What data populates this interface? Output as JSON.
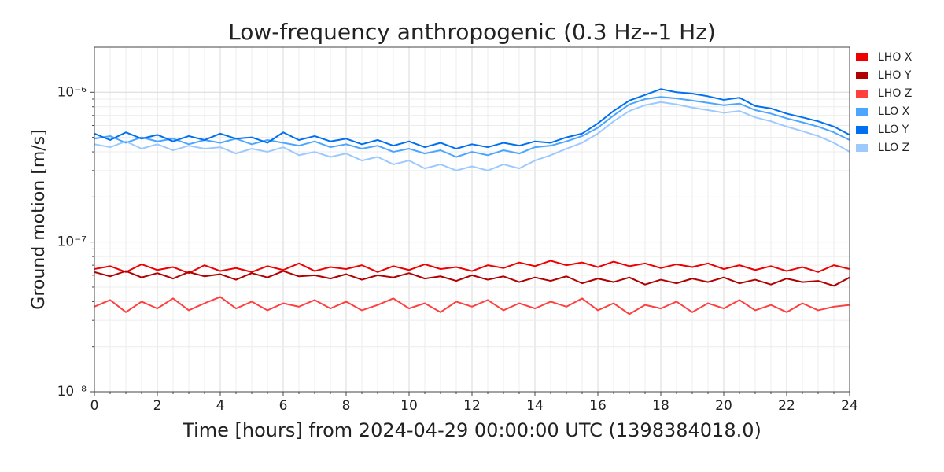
{
  "chart_data": {
    "type": "line",
    "title": "Low-frequency anthropogenic (0.3 Hz--1 Hz)",
    "xlabel": "Time [hours] from 2024-04-29 00:00:00 UTC (1398384018.0)",
    "ylabel": "Ground motion [m/s]",
    "yscale": "log",
    "grid": true,
    "legend": "outside-right",
    "xlim": [
      0,
      24
    ],
    "xticks": [
      0,
      2,
      4,
      6,
      8,
      10,
      12,
      14,
      16,
      18,
      20,
      22,
      24
    ],
    "xminorticks": [
      0.5,
      1,
      1.5,
      2.5,
      3,
      3.5,
      4.5,
      5,
      5.5,
      6.5,
      7,
      7.5,
      8.5,
      9,
      9.5,
      10.5,
      11,
      11.5,
      12.5,
      13,
      13.5,
      14.5,
      15,
      15.5,
      16.5,
      17,
      17.5,
      18.5,
      19,
      19.5,
      20.5,
      21,
      21.5,
      22.5,
      23,
      23.5
    ],
    "ylim": [
      1e-08,
      2e-06
    ],
    "yticks": [
      {
        "value": 1e-08,
        "label": "10⁻⁸"
      },
      {
        "value": 1e-07,
        "label": "10⁻⁷"
      },
      {
        "value": 1e-06,
        "label": "10⁻⁶"
      }
    ],
    "yminorticks": [
      2e-08,
      3e-08,
      4e-08,
      5e-08,
      6e-08,
      7e-08,
      8e-08,
      9e-08,
      2e-07,
      3e-07,
      4e-07,
      5e-07,
      6e-07,
      7e-07,
      8e-07,
      9e-07
    ],
    "x": [
      0,
      0.5,
      1,
      1.5,
      2,
      2.5,
      3,
      3.5,
      4,
      4.5,
      5,
      5.5,
      6,
      6.5,
      7,
      7.5,
      8,
      8.5,
      9,
      9.5,
      10,
      10.5,
      11,
      11.5,
      12,
      12.5,
      13,
      13.5,
      14,
      14.5,
      15,
      15.5,
      16,
      16.5,
      17,
      17.5,
      18,
      18.5,
      19,
      19.5,
      20,
      20.5,
      21,
      21.5,
      22,
      22.5,
      23,
      23.5,
      24
    ],
    "series": [
      {
        "name": "LHO X",
        "color": "#ee0000",
        "values": [
          6.6e-08,
          6.9e-08,
          6.3e-08,
          7.1e-08,
          6.5e-08,
          6.8e-08,
          6.2e-08,
          7e-08,
          6.4e-08,
          6.7e-08,
          6.3e-08,
          6.9e-08,
          6.5e-08,
          7.2e-08,
          6.4e-08,
          6.8e-08,
          6.6e-08,
          7e-08,
          6.3e-08,
          6.9e-08,
          6.5e-08,
          7.1e-08,
          6.6e-08,
          6.8e-08,
          6.4e-08,
          7e-08,
          6.7e-08,
          7.3e-08,
          6.9e-08,
          7.5e-08,
          7e-08,
          7.3e-08,
          6.8e-08,
          7.4e-08,
          6.9e-08,
          7.2e-08,
          6.7e-08,
          7.1e-08,
          6.8e-08,
          7.2e-08,
          6.6e-08,
          7e-08,
          6.5e-08,
          6.9e-08,
          6.4e-08,
          6.8e-08,
          6.3e-08,
          7e-08,
          6.6e-08
        ]
      },
      {
        "name": "LHO Y",
        "color": "#b00000",
        "values": [
          6.3e-08,
          5.9e-08,
          6.4e-08,
          5.8e-08,
          6.2e-08,
          5.7e-08,
          6.3e-08,
          5.9e-08,
          6.1e-08,
          5.6e-08,
          6.2e-08,
          5.8e-08,
          6.4e-08,
          5.9e-08,
          6e-08,
          5.7e-08,
          6.1e-08,
          5.6e-08,
          6e-08,
          5.8e-08,
          6.2e-08,
          5.7e-08,
          5.9e-08,
          5.5e-08,
          6e-08,
          5.6e-08,
          5.9e-08,
          5.4e-08,
          5.8e-08,
          5.5e-08,
          5.9e-08,
          5.3e-08,
          5.7e-08,
          5.4e-08,
          5.8e-08,
          5.2e-08,
          5.6e-08,
          5.3e-08,
          5.7e-08,
          5.4e-08,
          5.8e-08,
          5.3e-08,
          5.6e-08,
          5.2e-08,
          5.7e-08,
          5.4e-08,
          5.5e-08,
          5.1e-08,
          5.8e-08
        ]
      },
      {
        "name": "LHO Z",
        "color": "#ff4040",
        "values": [
          3.7e-08,
          4.1e-08,
          3.4e-08,
          4e-08,
          3.6e-08,
          4.2e-08,
          3.5e-08,
          3.9e-08,
          4.3e-08,
          3.6e-08,
          4e-08,
          3.5e-08,
          3.9e-08,
          3.7e-08,
          4.1e-08,
          3.6e-08,
          4e-08,
          3.5e-08,
          3.8e-08,
          4.2e-08,
          3.6e-08,
          3.9e-08,
          3.4e-08,
          4e-08,
          3.7e-08,
          4.1e-08,
          3.5e-08,
          3.9e-08,
          3.6e-08,
          4e-08,
          3.7e-08,
          4.2e-08,
          3.5e-08,
          3.9e-08,
          3.3e-08,
          3.8e-08,
          3.6e-08,
          4e-08,
          3.4e-08,
          3.9e-08,
          3.6e-08,
          4.1e-08,
          3.5e-08,
          3.8e-08,
          3.4e-08,
          3.9e-08,
          3.5e-08,
          3.7e-08,
          3.8e-08
        ]
      },
      {
        "name": "LLO X",
        "color": "#4ba6ff",
        "values": [
          4.9e-07,
          5.1e-07,
          4.6e-07,
          5e-07,
          4.7e-07,
          4.9e-07,
          4.5e-07,
          4.8e-07,
          4.6e-07,
          4.9e-07,
          4.5e-07,
          4.8e-07,
          4.6e-07,
          4.4e-07,
          4.7e-07,
          4.3e-07,
          4.5e-07,
          4.2e-07,
          4.4e-07,
          4e-07,
          4.2e-07,
          3.9e-07,
          4.1e-07,
          3.7e-07,
          4e-07,
          3.8e-07,
          4.1e-07,
          3.9e-07,
          4.3e-07,
          4.4e-07,
          4.7e-07,
          5.1e-07,
          5.8e-07,
          7e-07,
          8.3e-07,
          9e-07,
          9.3e-07,
          9.1e-07,
          8.8e-07,
          8.5e-07,
          8.2e-07,
          8.4e-07,
          7.6e-07,
          7.2e-07,
          6.7e-07,
          6.3e-07,
          5.9e-07,
          5.4e-07,
          4.8e-07
        ]
      },
      {
        "name": "LLO Y",
        "color": "#0070f0",
        "values": [
          5.3e-07,
          4.8e-07,
          5.4e-07,
          4.9e-07,
          5.2e-07,
          4.7e-07,
          5.1e-07,
          4.8e-07,
          5.3e-07,
          4.9e-07,
          5e-07,
          4.6e-07,
          5.4e-07,
          4.8e-07,
          5.1e-07,
          4.7e-07,
          4.9e-07,
          4.5e-07,
          4.8e-07,
          4.4e-07,
          4.7e-07,
          4.3e-07,
          4.6e-07,
          4.2e-07,
          4.5e-07,
          4.3e-07,
          4.6e-07,
          4.4e-07,
          4.7e-07,
          4.6e-07,
          5e-07,
          5.3e-07,
          6.2e-07,
          7.5e-07,
          8.8e-07,
          9.6e-07,
          1.05e-06,
          1e-06,
          9.8e-07,
          9.4e-07,
          8.9e-07,
          9.2e-07,
          8.1e-07,
          7.8e-07,
          7.2e-07,
          6.8e-07,
          6.4e-07,
          5.9e-07,
          5.2e-07
        ]
      },
      {
        "name": "LLO Z",
        "color": "#9ccaff",
        "values": [
          4.5e-07,
          4.3e-07,
          4.7e-07,
          4.2e-07,
          4.5e-07,
          4.1e-07,
          4.4e-07,
          4.2e-07,
          4.3e-07,
          3.9e-07,
          4.2e-07,
          4e-07,
          4.3e-07,
          3.8e-07,
          4e-07,
          3.7e-07,
          3.9e-07,
          3.5e-07,
          3.7e-07,
          3.3e-07,
          3.5e-07,
          3.1e-07,
          3.3e-07,
          3e-07,
          3.2e-07,
          3e-07,
          3.3e-07,
          3.1e-07,
          3.5e-07,
          3.8e-07,
          4.2e-07,
          4.6e-07,
          5.3e-07,
          6.4e-07,
          7.5e-07,
          8.2e-07,
          8.6e-07,
          8.3e-07,
          7.9e-07,
          7.6e-07,
          7.3e-07,
          7.5e-07,
          6.8e-07,
          6.4e-07,
          5.9e-07,
          5.5e-07,
          5.1e-07,
          4.6e-07,
          4e-07
        ]
      }
    ]
  }
}
